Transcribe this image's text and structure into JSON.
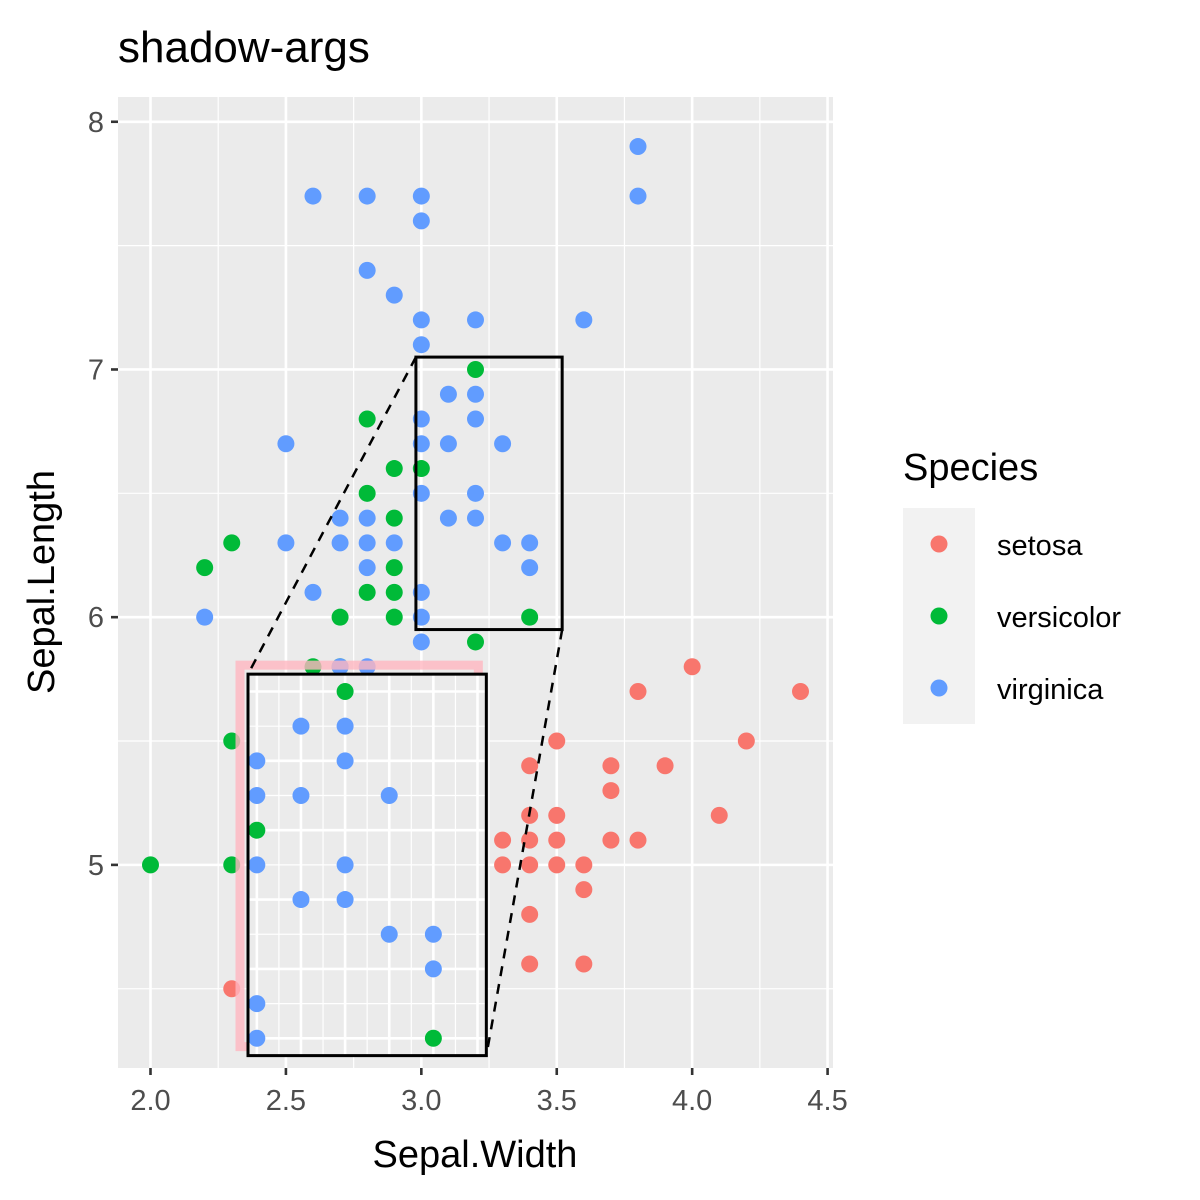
{
  "chart_data": {
    "type": "scatter",
    "title": "shadow-args",
    "xlabel": "Sepal.Width",
    "ylabel": "Sepal.Length",
    "xlim": [
      1.88,
      4.52
    ],
    "ylim": [
      4.18,
      8.1
    ],
    "x_ticks": [
      2.0,
      2.5,
      3.0,
      3.5,
      4.0,
      4.5
    ],
    "x_tick_labels": [
      "2.0",
      "2.5",
      "3.0",
      "3.5",
      "4.0",
      "4.5"
    ],
    "y_ticks": [
      5,
      6,
      7,
      8
    ],
    "y_tick_labels": [
      "5",
      "6",
      "7",
      "8"
    ],
    "grid": true,
    "legend": {
      "title": "Species",
      "position": "right"
    },
    "series": [
      {
        "name": "setosa",
        "color": "#F8766D",
        "points": [
          [
            3.4,
            5.4
          ],
          [
            3.5,
            5.5
          ],
          [
            3.7,
            5.4
          ],
          [
            3.7,
            5.3
          ],
          [
            3.9,
            5.4
          ],
          [
            4.0,
            5.8
          ],
          [
            3.8,
            5.7
          ],
          [
            4.4,
            5.7
          ],
          [
            4.2,
            5.5
          ],
          [
            4.1,
            5.2
          ],
          [
            3.4,
            5.2
          ],
          [
            3.5,
            5.2
          ],
          [
            3.3,
            5.1
          ],
          [
            3.4,
            5.1
          ],
          [
            3.5,
            5.1
          ],
          [
            3.7,
            5.1
          ],
          [
            3.8,
            5.1
          ],
          [
            3.3,
            5.0
          ],
          [
            3.4,
            5.0
          ],
          [
            3.5,
            5.0
          ],
          [
            3.6,
            5.0
          ],
          [
            3.6,
            4.9
          ],
          [
            3.4,
            4.8
          ],
          [
            3.4,
            4.6
          ],
          [
            3.6,
            4.6
          ],
          [
            2.3,
            4.5
          ]
        ]
      },
      {
        "name": "versicolor",
        "color": "#00BA38",
        "points": [
          [
            3.2,
            7.0
          ],
          [
            2.8,
            6.8
          ],
          [
            2.9,
            6.6
          ],
          [
            3.0,
            6.6
          ],
          [
            2.8,
            6.5
          ],
          [
            2.9,
            6.4
          ],
          [
            2.3,
            6.3
          ],
          [
            2.2,
            6.2
          ],
          [
            2.9,
            6.2
          ],
          [
            2.8,
            6.1
          ],
          [
            2.9,
            6.1
          ],
          [
            2.7,
            6.0
          ],
          [
            2.9,
            6.0
          ],
          [
            3.4,
            6.0
          ],
          [
            3.2,
            5.9
          ],
          [
            2.6,
            5.8
          ],
          [
            2.7,
            5.8
          ],
          [
            2.8,
            5.7
          ],
          [
            2.3,
            5.5
          ],
          [
            2.0,
            5.0
          ],
          [
            2.3,
            5.0
          ],
          [
            2.4,
            4.9
          ]
        ]
      },
      {
        "name": "virginica",
        "color": "#619CFF",
        "points": [
          [
            3.8,
            7.9
          ],
          [
            3.8,
            7.7
          ],
          [
            2.6,
            7.7
          ],
          [
            2.8,
            7.7
          ],
          [
            3.0,
            7.7
          ],
          [
            3.0,
            7.6
          ],
          [
            2.8,
            7.4
          ],
          [
            2.9,
            7.3
          ],
          [
            3.0,
            7.2
          ],
          [
            3.2,
            7.2
          ],
          [
            3.6,
            7.2
          ],
          [
            3.0,
            7.1
          ],
          [
            3.1,
            6.9
          ],
          [
            3.2,
            6.9
          ],
          [
            3.0,
            6.8
          ],
          [
            3.2,
            6.8
          ],
          [
            2.5,
            6.7
          ],
          [
            3.0,
            6.7
          ],
          [
            3.1,
            6.7
          ],
          [
            3.3,
            6.7
          ],
          [
            3.0,
            6.5
          ],
          [
            3.2,
            6.5
          ],
          [
            2.7,
            6.4
          ],
          [
            2.8,
            6.4
          ],
          [
            3.1,
            6.4
          ],
          [
            3.2,
            6.4
          ],
          [
            2.5,
            6.3
          ],
          [
            2.7,
            6.3
          ],
          [
            2.8,
            6.3
          ],
          [
            2.9,
            6.3
          ],
          [
            3.3,
            6.3
          ],
          [
            3.4,
            6.3
          ],
          [
            2.8,
            6.2
          ],
          [
            3.4,
            6.2
          ],
          [
            2.6,
            6.1
          ],
          [
            3.0,
            6.1
          ],
          [
            2.2,
            6.0
          ],
          [
            3.0,
            6.0
          ],
          [
            3.0,
            5.9
          ],
          [
            2.7,
            5.8
          ],
          [
            2.8,
            5.8
          ]
        ]
      }
    ],
    "annotations": [
      {
        "type": "zoom-region",
        "x_range": [
          2.98,
          3.52
        ],
        "y_range": [
          5.95,
          7.05
        ]
      },
      {
        "type": "zoom-inset",
        "x_range": [
          2.36,
          3.24
        ],
        "y_range": [
          4.23,
          5.77
        ],
        "shows": "points within the zoom-region, magnified"
      }
    ]
  }
}
